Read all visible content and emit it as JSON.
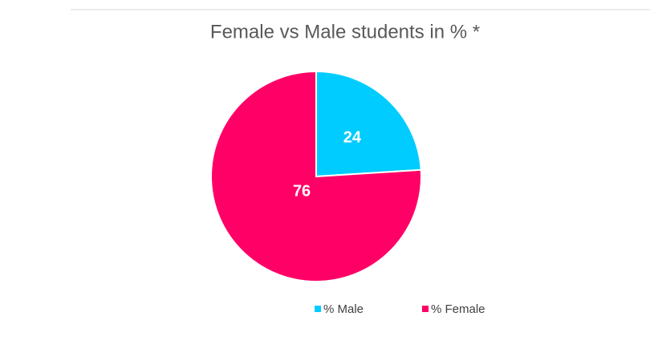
{
  "chart_data": {
    "type": "pie",
    "title": "Female vs Male students in % *",
    "categories": [
      "% Male",
      "% Female"
    ],
    "values": [
      24,
      76
    ],
    "colors": [
      "#00ccff",
      "#ff0066"
    ],
    "legend": "bottom"
  }
}
